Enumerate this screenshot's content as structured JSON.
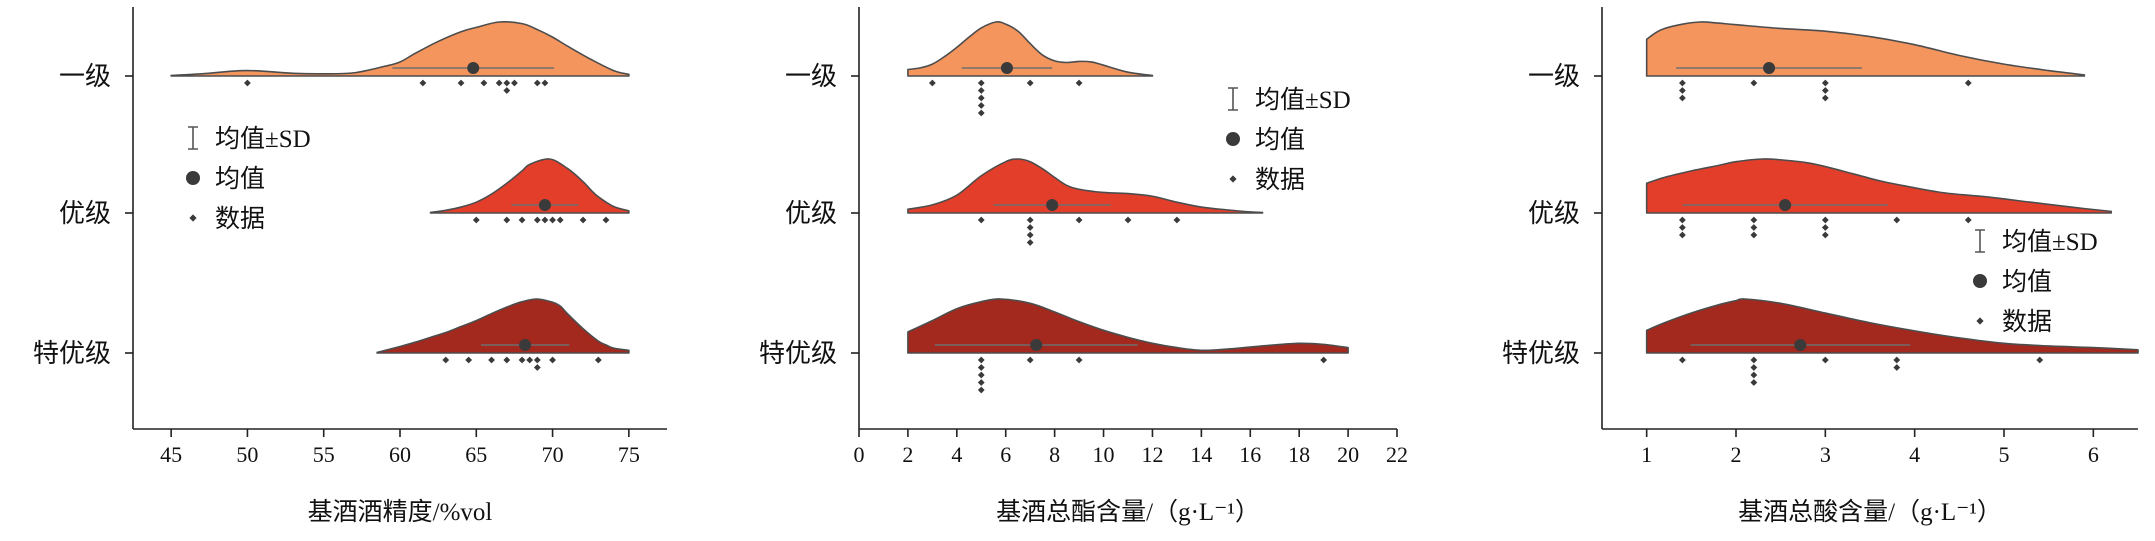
{
  "chart_data": [
    {
      "type": "violin",
      "xlabel": "基酒酒精度/%vol",
      "xlim": [
        42.5,
        77.5
      ],
      "x_ticks": [
        45,
        50,
        55,
        60,
        65,
        70,
        75
      ],
      "categories": [
        "一级",
        "优级",
        "特优级"
      ],
      "legend": [
        "均值±SD",
        "均值",
        "数据"
      ],
      "legend_position": "center-left",
      "grid": false,
      "series": [
        {
          "color": "#F5955E",
          "mean": 64.8,
          "sd": 5.3,
          "points": [
            50,
            61.5,
            64,
            65.5,
            66.5,
            67,
            67,
            67.5,
            69,
            69.5
          ],
          "density": {
            "x": [
              45,
              47,
              49,
              50,
              51,
              53,
              55,
              57,
              59,
              60,
              61,
              62.5,
              64,
              65,
              66.5,
              68,
              69,
              70,
              71,
              72.5,
              74,
              75
            ],
            "d": [
              0.01,
              0.04,
              0.09,
              0.1,
              0.09,
              0.05,
              0.04,
              0.06,
              0.18,
              0.26,
              0.42,
              0.64,
              0.82,
              0.9,
              1.0,
              0.97,
              0.86,
              0.72,
              0.55,
              0.31,
              0.1,
              0.03
            ]
          }
        },
        {
          "color": "#E33E2A",
          "mean": 69.5,
          "sd": 2.2,
          "points": [
            65,
            67,
            68,
            69,
            69.5,
            70,
            70.5,
            72,
            73.5
          ],
          "density": {
            "x": [
              62,
              63,
              64,
              65,
              66,
              67,
              68,
              68.5,
              69.8,
              71,
              72,
              72.5,
              73,
              74,
              75
            ],
            "d": [
              0.01,
              0.05,
              0.11,
              0.2,
              0.35,
              0.55,
              0.78,
              0.9,
              1.0,
              0.82,
              0.58,
              0.43,
              0.3,
              0.12,
              0.04
            ]
          }
        },
        {
          "color": "#A3281D",
          "mean": 68.2,
          "sd": 2.9,
          "points": [
            63,
            64.5,
            66,
            67,
            68,
            68.5,
            69,
            69,
            70,
            73
          ],
          "density": {
            "x": [
              58.5,
              60,
              61,
              62,
              63,
              64,
              65,
              66,
              67,
              68,
              69,
              70,
              70.5,
              71,
              72,
              73,
              73.5,
              74,
              75
            ],
            "d": [
              0.01,
              0.12,
              0.2,
              0.29,
              0.38,
              0.49,
              0.6,
              0.73,
              0.85,
              0.95,
              1.0,
              0.94,
              0.87,
              0.72,
              0.45,
              0.22,
              0.15,
              0.09,
              0.05
            ]
          }
        }
      ]
    },
    {
      "type": "violin",
      "xlabel": "基酒总酯含量/（g·L⁻¹）",
      "xlim": [
        0,
        22
      ],
      "x_ticks": [
        0,
        2,
        4,
        6,
        8,
        10,
        12,
        14,
        16,
        18,
        20,
        22
      ],
      "categories": [
        "一级",
        "优级",
        "特优级"
      ],
      "legend": [
        "均值±SD",
        "均值",
        "数据"
      ],
      "legend_position": "upper-right",
      "grid": false,
      "series": [
        {
          "color": "#F5955E",
          "mean": 6.05,
          "sd": 1.85,
          "points": [
            3,
            5,
            5,
            5,
            5,
            5,
            7,
            9
          ],
          "density": {
            "x": [
              2,
              2.5,
              3,
              3.5,
              4,
              4.5,
              5,
              5.6,
              6,
              6.5,
              7,
              7.5,
              8,
              8.5,
              9,
              9.5,
              10,
              11,
              12
            ],
            "d": [
              0.12,
              0.15,
              0.22,
              0.36,
              0.53,
              0.72,
              0.89,
              1.0,
              0.96,
              0.83,
              0.6,
              0.39,
              0.28,
              0.25,
              0.27,
              0.26,
              0.2,
              0.07,
              0.01
            ]
          }
        },
        {
          "color": "#E33E2A",
          "mean": 7.9,
          "sd": 2.4,
          "points": [
            5,
            7,
            7,
            7,
            7,
            9,
            11,
            13
          ],
          "density": {
            "x": [
              2,
              3,
              4,
              5,
              6,
              6.5,
              7,
              7.5,
              8,
              8.5,
              9,
              10,
              11,
              12,
              13,
              14,
              15,
              16,
              16.5
            ],
            "d": [
              0.07,
              0.15,
              0.33,
              0.69,
              0.95,
              1.0,
              0.95,
              0.82,
              0.66,
              0.51,
              0.44,
              0.38,
              0.36,
              0.31,
              0.2,
              0.11,
              0.06,
              0.02,
              0.01
            ]
          }
        },
        {
          "color": "#A3281D",
          "mean": 7.25,
          "sd": 4.15,
          "points": [
            5,
            5,
            5,
            5,
            5,
            7,
            9,
            19
          ],
          "density": {
            "x": [
              2,
              3,
              4,
              5,
              5.8,
              7,
              8,
              9,
              10,
              11,
              12,
              13,
              14,
              15,
              16,
              17,
              18,
              19,
              20
            ],
            "d": [
              0.39,
              0.6,
              0.82,
              0.95,
              1.0,
              0.92,
              0.76,
              0.58,
              0.42,
              0.29,
              0.18,
              0.1,
              0.05,
              0.07,
              0.11,
              0.15,
              0.18,
              0.16,
              0.1
            ]
          }
        }
      ]
    },
    {
      "type": "violin",
      "xlabel": "基酒总酸含量/（g·L⁻¹）",
      "xlim": [
        0.5,
        6.5
      ],
      "x_ticks": [
        1,
        2,
        3,
        4,
        5,
        6
      ],
      "categories": [
        "一级",
        "优级",
        "特优级"
      ],
      "legend": [
        "均值±SD",
        "均值",
        "数据"
      ],
      "legend_position": "right",
      "grid": false,
      "series": [
        {
          "color": "#F5955E",
          "mean": 2.37,
          "sd": 1.04,
          "points": [
            1.4,
            1.4,
            1.4,
            2.2,
            3,
            3,
            3,
            4.6
          ],
          "density": {
            "x": [
              1,
              1.1,
              1.2,
              1.4,
              1.6,
              1.8,
              2,
              2.5,
              3,
              3.5,
              4,
              4.5,
              5,
              5.5,
              5.9
            ],
            "d": [
              0.68,
              0.8,
              0.88,
              0.96,
              1.0,
              0.98,
              0.95,
              0.88,
              0.83,
              0.73,
              0.58,
              0.38,
              0.22,
              0.1,
              0.02
            ]
          }
        },
        {
          "color": "#E33E2A",
          "mean": 2.55,
          "sd": 1.15,
          "points": [
            1.4,
            1.4,
            1.4,
            2.2,
            2.2,
            2.2,
            3,
            3,
            3,
            3.8,
            4.6
          ],
          "density": {
            "x": [
              1,
              1.2,
              1.5,
              1.8,
              2,
              2.3,
              2.6,
              2.8,
              3,
              3.3,
              3.6,
              3.8,
              4.3,
              4.8,
              5.3,
              5.8,
              6.2
            ],
            "d": [
              0.55,
              0.66,
              0.78,
              0.88,
              0.95,
              1.0,
              0.97,
              0.93,
              0.86,
              0.73,
              0.6,
              0.53,
              0.38,
              0.3,
              0.2,
              0.1,
              0.03
            ]
          }
        },
        {
          "color": "#A3281D",
          "mean": 2.72,
          "sd": 1.23,
          "points": [
            1.4,
            2.2,
            2.2,
            2.2,
            2.2,
            3,
            3.8,
            3.8,
            5.4
          ],
          "density": {
            "x": [
              1,
              1.2,
              1.5,
              1.8,
              2,
              2.1,
              2.5,
              3,
              3.5,
              4,
              4.5,
              5,
              5.5,
              6,
              6.5
            ],
            "d": [
              0.42,
              0.56,
              0.74,
              0.89,
              0.97,
              1.0,
              0.92,
              0.74,
              0.56,
              0.41,
              0.28,
              0.18,
              0.13,
              0.1,
              0.06
            ]
          }
        }
      ]
    }
  ]
}
